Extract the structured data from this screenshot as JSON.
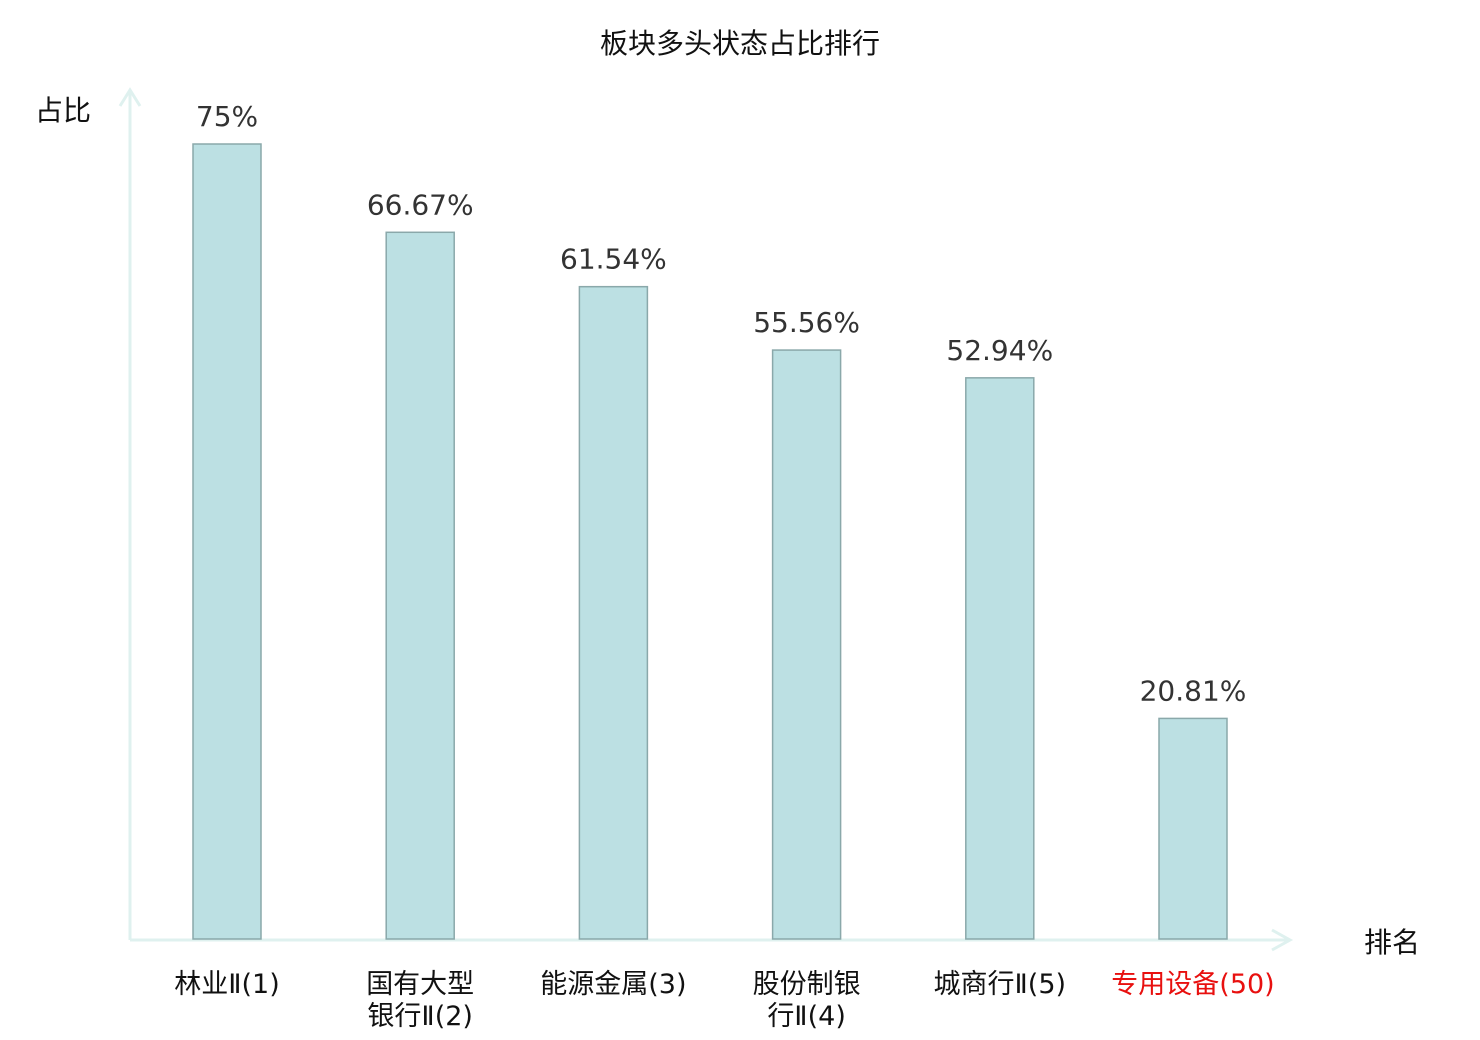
{
  "chart_data": {
    "type": "bar",
    "title": "板块多头状态占比排行",
    "xlabel": "排名",
    "ylabel": "占比",
    "categories": [
      "林业Ⅱ(1)",
      "国有大型银行Ⅱ(2)",
      "能源金属(3)",
      "股份制银行Ⅱ(4)",
      "城商行Ⅱ(5)",
      "专用设备(50)"
    ],
    "values": [
      75,
      66.67,
      61.54,
      55.56,
      52.94,
      20.81
    ],
    "data_labels": [
      "75%",
      "66.67%",
      "61.54%",
      "55.56%",
      "52.94%",
      "20.81%"
    ],
    "highlight_index": 5,
    "ylim": [
      0,
      80
    ],
    "grid": false,
    "legend": "none",
    "colors": {
      "bar_fill": "#bce0e3",
      "bar_stroke": "#8aa8aa",
      "axis": "#dff1ef",
      "highlight_label": "#e8100f",
      "text": "#333333"
    }
  }
}
